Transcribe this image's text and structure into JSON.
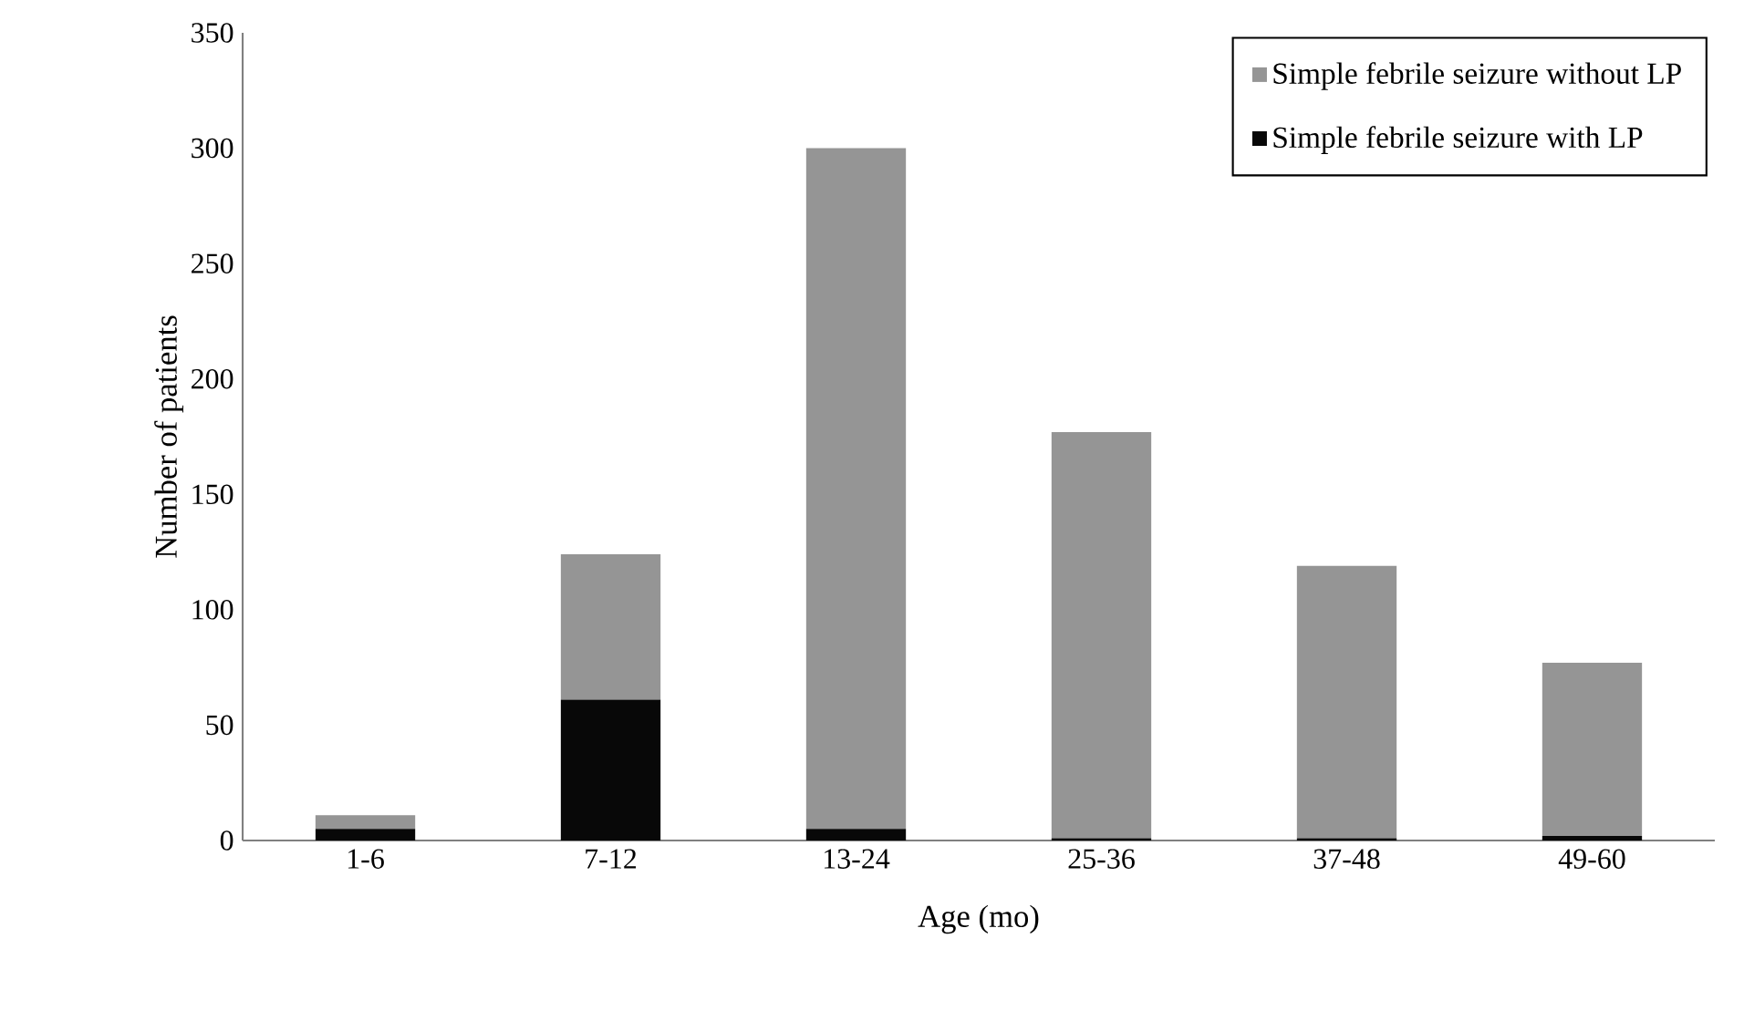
{
  "chart_data": {
    "type": "bar",
    "stacked": true,
    "xlabel": "Age (mo)",
    "ylabel": "Number of patients",
    "categories": [
      "1-6",
      "7-12",
      "13-24",
      "25-36",
      "37-48",
      "49-60"
    ],
    "series": [
      {
        "name": "Simple febrile seizure with LP",
        "color": "#080808",
        "values": [
          5,
          61,
          5,
          1,
          1,
          2
        ]
      },
      {
        "name": "Simple febrile seizure without LP",
        "color": "#959595",
        "values": [
          6,
          63,
          295,
          176,
          118,
          75
        ]
      }
    ],
    "ylim": [
      0,
      350
    ],
    "yticks": [
      0,
      50,
      100,
      150,
      200,
      250,
      300,
      350
    ],
    "legend": "top right",
    "grid": false
  }
}
